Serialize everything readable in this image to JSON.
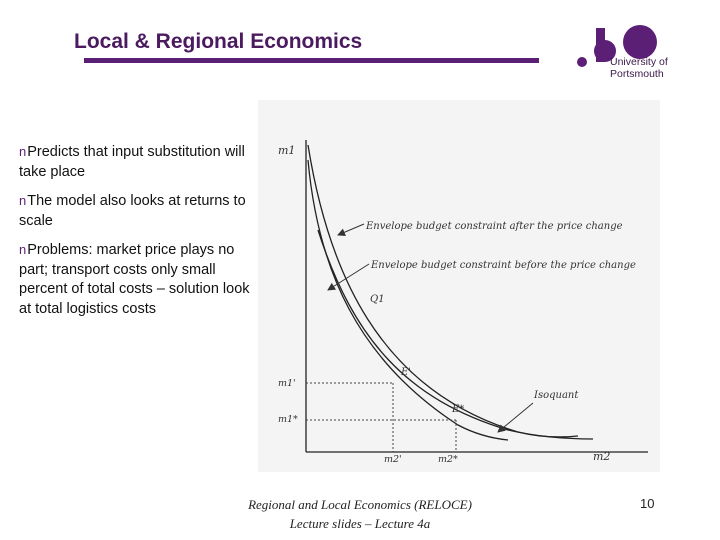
{
  "header": {
    "title": "Local & Regional Economics",
    "brand_color": "#5b1f76"
  },
  "logo": {
    "line1": "University of",
    "line2": "Portsmouth"
  },
  "bullets": [
    "Predicts that input substitution will take place",
    "The model also looks at returns to scale",
    "Problems: market price plays no part; transport costs only small percent of total costs – solution look at total logistics costs"
  ],
  "figure": {
    "y_axis_label": "m1",
    "x_axis_label": "m2",
    "annotation_after": "Envelope budget constraint after the price change",
    "annotation_before": "Envelope budget constraint before the price change",
    "annotation_isoquant": "Isoquant",
    "label_q1": "Q1",
    "label_e_prime": "E'",
    "label_e_star": "E*",
    "tick_m1_prime": "m1'",
    "tick_m1_star": "m1*",
    "tick_m2_prime": "m2'",
    "tick_m2_star": "m2*"
  },
  "footer": {
    "line1": "Regional and Local Economics (RELOCE)",
    "line2": "Lecture slides – Lecture 4a"
  },
  "page_number": "10"
}
